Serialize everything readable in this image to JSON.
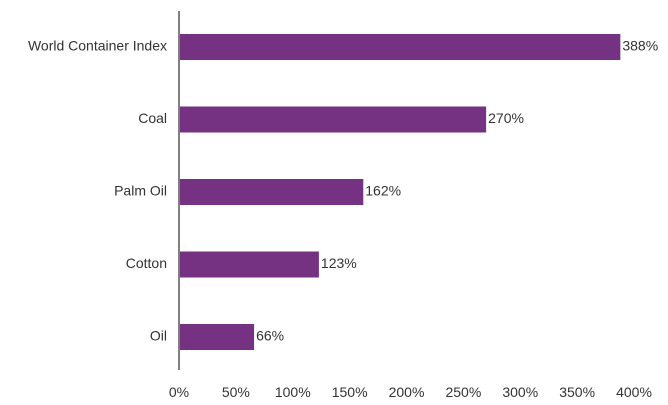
{
  "chart_data": {
    "type": "bar",
    "orientation": "horizontal",
    "title": "",
    "xlabel": "",
    "ylabel": "",
    "categories": [
      "World Container Index",
      "Coal",
      "Palm Oil",
      "Cotton",
      "Oil"
    ],
    "values": [
      388,
      270,
      162,
      123,
      66
    ],
    "value_labels": [
      "388%",
      "270%",
      "162%",
      "123%",
      "66%"
    ],
    "xlim": [
      0,
      400
    ],
    "x_ticks": [
      0,
      50,
      100,
      150,
      200,
      250,
      300,
      350,
      400
    ],
    "x_tick_labels": [
      "0%",
      "50%",
      "100%",
      "150%",
      "200%",
      "250%",
      "300%",
      "350%",
      "400%"
    ],
    "grid": false,
    "bar_color": "#763282",
    "axis_color": "#808080"
  }
}
